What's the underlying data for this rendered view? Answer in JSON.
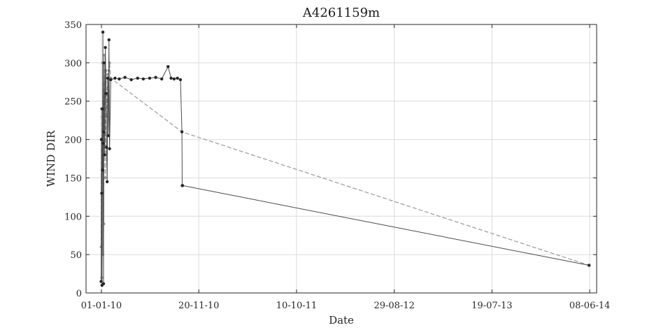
{
  "chart_data": {
    "type": "line",
    "title": "A4261159m",
    "xlabel": "Date",
    "ylabel": "WIND DIR",
    "xlim": [
      "2009-11-11",
      "2014-07-01"
    ],
    "ylim": [
      0,
      350
    ],
    "grid": true,
    "legend": "none",
    "x_tick_labels": [
      "01-01-10",
      "20-11-10",
      "10-10-11",
      "29-08-12",
      "19-07-13",
      "08-06-14"
    ],
    "y_tick_labels": [
      "0",
      "50",
      "100",
      "150",
      "200",
      "250",
      "300",
      "350"
    ],
    "series": [
      {
        "style": "dark markers",
        "x": [
          "2009-12-31",
          "2010-01-01",
          "2010-01-02",
          "2010-01-03",
          "2010-01-04",
          "2010-01-05",
          "2010-01-06",
          "2010-01-07",
          "2010-01-08",
          "2010-01-09",
          "2010-01-10",
          "2010-01-12",
          "2010-01-14",
          "2010-01-16",
          "2010-01-18",
          "2010-01-20",
          "2010-01-22",
          "2010-01-24",
          "2010-01-26",
          "2010-01-28",
          "2010-02-01",
          "2010-02-15",
          "2010-03-01",
          "2010-03-20",
          "2010-04-10",
          "2010-05-01",
          "2010-05-20",
          "2010-06-10",
          "2010-06-30",
          "2010-07-20",
          "2010-08-10",
          "2010-08-20",
          "2010-08-30",
          "2010-09-10",
          "2010-09-20",
          "2010-09-25",
          "2010-09-26",
          "2010-09-27",
          "2014-06-06"
        ],
        "y": [
          15,
          200,
          130,
          10,
          240,
          160,
          340,
          195,
          12,
          210,
          300,
          180,
          320,
          260,
          190,
          145,
          280,
          205,
          330,
          188,
          278,
          280,
          279,
          281,
          278,
          280,
          279,
          280,
          281,
          279,
          295,
          280,
          279,
          280,
          278,
          210,
          140,
          140,
          36
        ]
      },
      {
        "style": "grey dashed",
        "x": [
          "2009-12-31",
          "2010-01-01",
          "2010-01-02",
          "2010-01-03",
          "2010-01-04",
          "2010-01-05",
          "2010-01-06",
          "2010-01-07",
          "2010-01-08",
          "2010-01-09",
          "2010-01-10",
          "2010-01-12",
          "2010-01-14",
          "2010-01-16",
          "2010-01-18",
          "2010-01-20",
          "2010-01-22",
          "2010-01-24",
          "2010-01-26",
          "2010-01-28",
          "2010-02-01",
          "2010-09-25",
          "2014-06-06"
        ],
        "y": [
          60,
          240,
          20,
          230,
          120,
          300,
          50,
          250,
          180,
          90,
          310,
          200,
          150,
          290,
          230,
          260,
          285,
          250,
          290,
          300,
          280,
          210,
          36
        ]
      }
    ]
  }
}
